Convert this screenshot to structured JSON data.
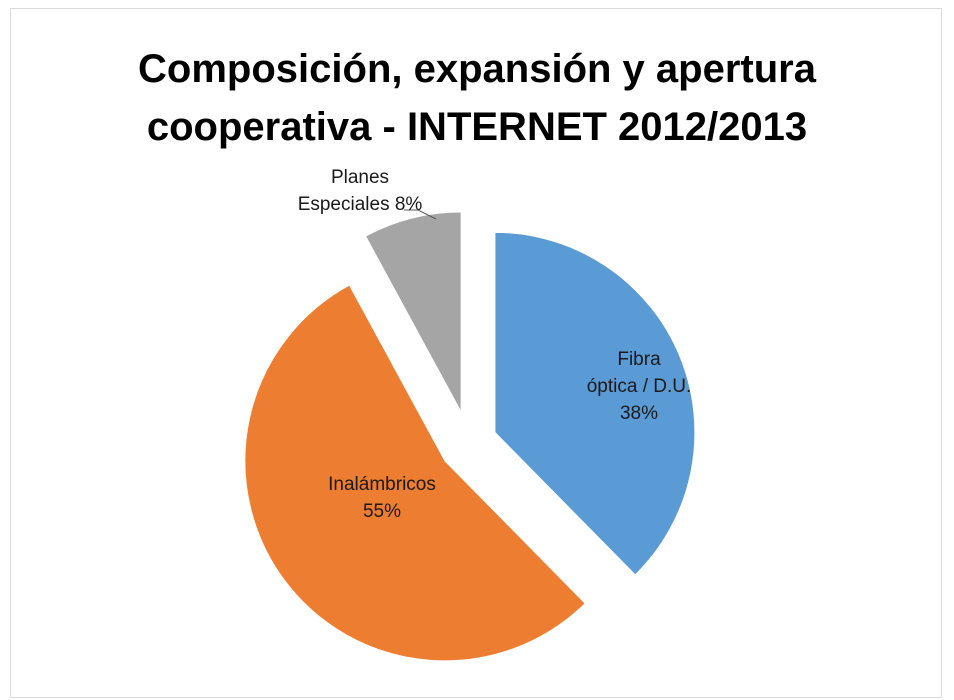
{
  "chart_data": {
    "type": "pie",
    "title": "Composición, expansión y apertura cooperativa - INTERNET 2012/2013",
    "title_lines": [
      "Composición, expansión y apertura",
      "cooperativa - INTERNET 2012/2013"
    ],
    "slices": [
      {
        "name": "Fibra óptica / D.U.",
        "value": 38,
        "label_lines": [
          "Fibra",
          "óptica / D.U.",
          "38%"
        ],
        "color": "#5B9BD5",
        "exploded": true
      },
      {
        "name": "Inalámbricos",
        "value": 55,
        "label_lines": [
          "Inalámbricos",
          "55%"
        ],
        "color": "#ED7D31",
        "exploded": true
      },
      {
        "name": "Planes Especiales",
        "value": 8,
        "label_lines": [
          "Planes",
          "Especiales 8%"
        ],
        "color": "#A5A5A5",
        "exploded": true
      }
    ],
    "legend": "none",
    "start_angle": "12 o'clock, clockwise"
  }
}
